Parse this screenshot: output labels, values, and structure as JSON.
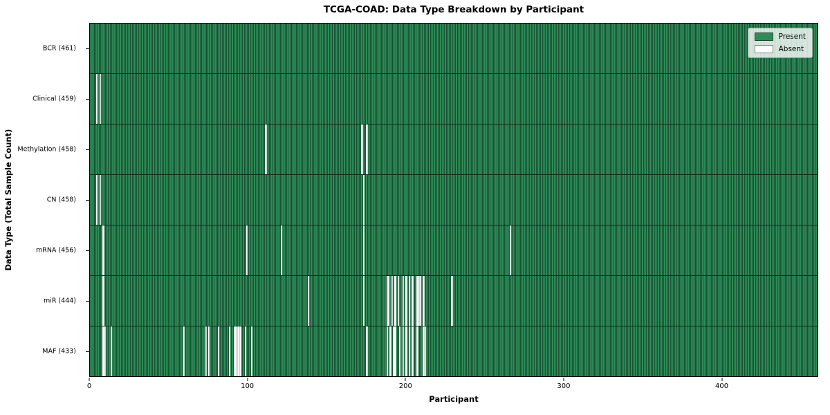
{
  "chart_data": {
    "type": "heatmap",
    "title": "TCGA-COAD: Data Type Breakdown by Participant",
    "xlabel": "Participant",
    "ylabel": "Data Type (Total Sample Count)",
    "legend": [
      "Present",
      "Absent"
    ],
    "legend_position": "upper right",
    "grid": false,
    "n_participants": 461,
    "xlim": [
      0,
      461
    ],
    "x_ticks": [
      0,
      100,
      200,
      300,
      400
    ],
    "colors": {
      "present": "#2e8b57",
      "absent": "#ffffff",
      "cell_edge": "rgba(8,40,24,0.55)",
      "background": "#ffffff"
    },
    "rows": [
      {
        "name": "BCR",
        "label": "BCR (461)",
        "count": 461,
        "absent_participants": []
      },
      {
        "name": "Clinical",
        "label": "Clinical (459)",
        "count": 459,
        "absent_participants": [
          4,
          6
        ]
      },
      {
        "name": "Methylation",
        "label": "Methylation (458)",
        "count": 458,
        "absent_participants": [
          111,
          172,
          175
        ]
      },
      {
        "name": "CN",
        "label": "CN (458)",
        "count": 458,
        "absent_participants": [
          4,
          6,
          173
        ]
      },
      {
        "name": "mRNA",
        "label": "mRNA (456)",
        "count": 456,
        "absent_participants": [
          8,
          99,
          121,
          173,
          266
        ]
      },
      {
        "name": "miR",
        "label": "miR (444)",
        "count": 444,
        "absent_participants": [
          8,
          138,
          173,
          188,
          189,
          191,
          193,
          195,
          198,
          200,
          202,
          204,
          207,
          208,
          209,
          211,
          229
        ]
      },
      {
        "name": "MAF",
        "label": "MAF (433)",
        "count": 433,
        "absent_participants": [
          8,
          9,
          13,
          59,
          73,
          75,
          81,
          88,
          91,
          92,
          93,
          94,
          95,
          98,
          102,
          175,
          188,
          190,
          192,
          193,
          196,
          198,
          200,
          202,
          204,
          207,
          211,
          212
        ]
      }
    ]
  }
}
